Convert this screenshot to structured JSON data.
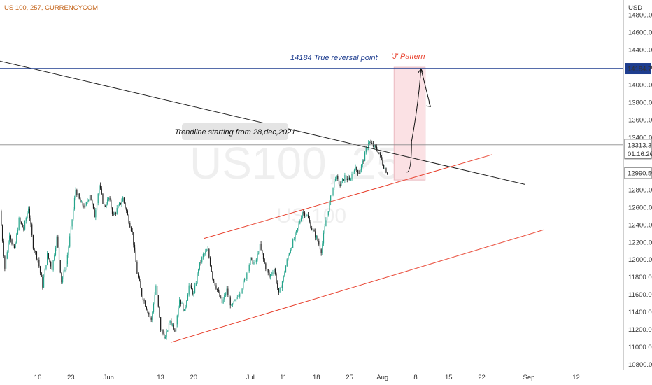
{
  "chart_data": {
    "type": "candlestick",
    "title": "US 100, 257, CURRENCYCOM",
    "watermark": {
      "symbol": "US100, 257",
      "sub": "US 100"
    },
    "currency_label": "USD",
    "y_ticks": [
      10800,
      11000,
      11200,
      11400,
      11600,
      11800,
      12000,
      12200,
      12400,
      12600,
      12800,
      13000,
      13200,
      13400,
      13600,
      13800,
      14000,
      14200,
      14400,
      14600,
      14800
    ],
    "y_tick_labels": [
      "10800.0",
      "11000.0",
      "11200.0",
      "11400.0",
      "11600.0",
      "11800.0",
      "12000.0",
      "12200.0",
      "12400.0",
      "12600.0",
      "12800.0",
      "13000.0",
      "13200.0",
      "13400.0",
      "13600.0",
      "13800.0",
      "14000.0",
      "14200.0",
      "14400.0",
      "14600.0",
      "14800.0"
    ],
    "ylim": [
      10740,
      14970
    ],
    "x_ticks": [
      {
        "label": "16",
        "bar": 4
      },
      {
        "label": "23",
        "bar": 11
      },
      {
        "label": "Jun",
        "bar": 19
      },
      {
        "label": "13",
        "bar": 30
      },
      {
        "label": "20",
        "bar": 37
      },
      {
        "label": "Jul",
        "bar": 49
      },
      {
        "label": "11",
        "bar": 56
      },
      {
        "label": "18",
        "bar": 63
      },
      {
        "label": "25",
        "bar": 70
      },
      {
        "label": "Aug",
        "bar": 77
      },
      {
        "label": "8",
        "bar": 84
      },
      {
        "label": "15",
        "bar": 91
      },
      {
        "label": "22",
        "bar": 98
      },
      {
        "label": "Sep",
        "bar": 108
      },
      {
        "label": "12",
        "bar": 118
      }
    ],
    "bars_before_first_tick": 4,
    "price_path": [
      [
        0,
        12550
      ],
      [
        1,
        11900
      ],
      [
        2,
        12300
      ],
      [
        3,
        12100
      ],
      [
        4,
        12450
      ],
      [
        5,
        12350
      ],
      [
        6,
        12600
      ],
      [
        7,
        12150
      ],
      [
        8,
        12000
      ],
      [
        9,
        11700
      ],
      [
        10,
        12050
      ],
      [
        11,
        11900
      ],
      [
        12,
        12250
      ],
      [
        13,
        11750
      ],
      [
        14,
        11950
      ],
      [
        15,
        12350
      ],
      [
        16,
        12800
      ],
      [
        17,
        12650
      ],
      [
        18,
        12600
      ],
      [
        19,
        12750
      ],
      [
        20,
        12500
      ],
      [
        21,
        12850
      ],
      [
        22,
        12600
      ],
      [
        23,
        12700
      ],
      [
        24,
        12500
      ],
      [
        25,
        12600
      ],
      [
        26,
        12700
      ],
      [
        27,
        12500
      ],
      [
        28,
        12300
      ],
      [
        29,
        11850
      ],
      [
        30,
        11600
      ],
      [
        31,
        11450
      ],
      [
        32,
        11300
      ],
      [
        33,
        11700
      ],
      [
        34,
        11200
      ],
      [
        35,
        11100
      ],
      [
        36,
        11300
      ],
      [
        37,
        11200
      ],
      [
        38,
        11550
      ],
      [
        39,
        11400
      ],
      [
        40,
        11700
      ],
      [
        41,
        11600
      ],
      [
        42,
        11900
      ],
      [
        43,
        12050
      ],
      [
        44,
        12100
      ],
      [
        45,
        11800
      ],
      [
        46,
        11650
      ],
      [
        47,
        11500
      ],
      [
        48,
        11650
      ],
      [
        49,
        11450
      ],
      [
        50,
        11550
      ],
      [
        51,
        11650
      ],
      [
        52,
        11800
      ],
      [
        53,
        12000
      ],
      [
        54,
        11950
      ],
      [
        55,
        12150
      ],
      [
        56,
        11950
      ],
      [
        57,
        11800
      ],
      [
        58,
        11900
      ],
      [
        59,
        11600
      ],
      [
        60,
        11800
      ],
      [
        61,
        12050
      ],
      [
        62,
        12200
      ],
      [
        63,
        12350
      ],
      [
        64,
        12550
      ],
      [
        65,
        12500
      ],
      [
        66,
        12350
      ],
      [
        67,
        12250
      ],
      [
        68,
        12100
      ],
      [
        69,
        12450
      ],
      [
        70,
        12700
      ],
      [
        71,
        12950
      ],
      [
        72,
        12850
      ],
      [
        73,
        12950
      ],
      [
        74,
        12900
      ],
      [
        75,
        13050
      ],
      [
        76,
        13000
      ],
      [
        77,
        13150
      ],
      [
        78,
        13350
      ],
      [
        79,
        13300
      ],
      [
        80,
        13250
      ],
      [
        81,
        13100
      ],
      [
        82,
        12990
      ]
    ],
    "levels": {
      "reversal": {
        "value": 14184.7,
        "label": "14184.7",
        "text": "14184 True reversal point",
        "color": "#1e3d8f"
      },
      "current": {
        "value": 13313.3,
        "label": "13313.3",
        "timer": "01:16:20",
        "color": "#222222"
      },
      "support": {
        "value": 12990.5,
        "label": "12990.5"
      }
    },
    "trendline": {
      "text": "Trendline starting from 28,dec,2021",
      "from": {
        "bar": -4,
        "price": 14320
      },
      "to": {
        "bar": 111,
        "price": 12860
      },
      "color": "#222222"
    },
    "channel": {
      "upper": {
        "from": {
          "bar": 43,
          "price": 12240
        },
        "to": {
          "bar": 104,
          "price": 13200
        }
      },
      "lower": {
        "from": {
          "bar": 36,
          "price": 11050
        },
        "to": {
          "bar": 115,
          "price": 12340
        }
      },
      "color": "#e8412e"
    },
    "j_pattern": {
      "label": "'J' Pattern",
      "box": {
        "bar_from": 83,
        "bar_to": 89,
        "price_top": 14200,
        "price_bottom": 12910
      },
      "color": "#e8412e",
      "projection": [
        [
          86,
          13000
        ],
        [
          87,
          13350
        ],
        [
          88,
          13850
        ],
        [
          89,
          14184
        ],
        [
          91,
          13750
        ]
      ]
    },
    "colors": {
      "up": "#22a38a",
      "down": "#1a1a1a",
      "axis_text": "#333333",
      "title": "#c4641a"
    }
  }
}
